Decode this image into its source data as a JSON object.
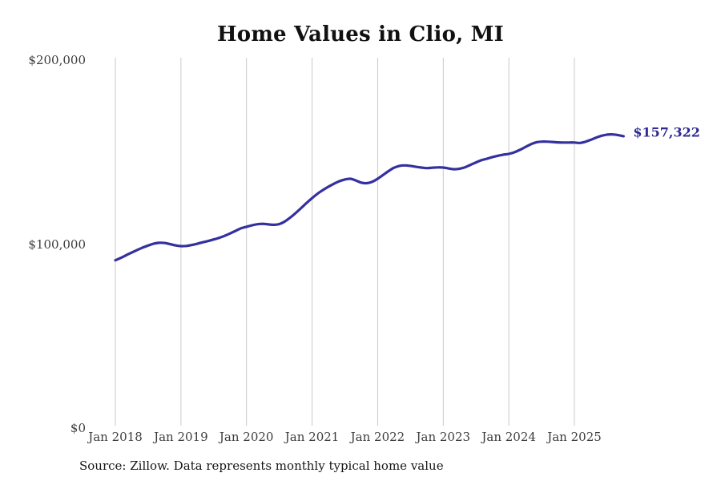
{
  "title": "Home Values in Clio, MI",
  "source_note": "Source: Zillow. Data represents monthly typical home value",
  "latest_value_label": "$157,322",
  "colors": {
    "line": "#34319f",
    "latest_label": "#2d2a92",
    "gridline": "#c9c9c9",
    "tick_text": "#3d3d3d",
    "title_text": "#111111",
    "background": "#ffffff"
  },
  "y_axis": {
    "tick_labels": [
      "$200,000",
      "$100,000",
      "$0"
    ],
    "tick_values": [
      200000,
      100000,
      0
    ]
  },
  "x_axis": {
    "tick_labels": [
      "Jan 2018",
      "Jan 2019",
      "Jan 2020",
      "Jan 2021",
      "Jan 2022",
      "Jan 2023",
      "Jan 2024",
      "Jan 2025"
    ],
    "tick_month_indices": [
      0,
      12,
      24,
      36,
      48,
      60,
      72,
      84
    ]
  },
  "chart_data": {
    "type": "line",
    "title": "Home Values in Clio, MI",
    "xlabel": "",
    "ylabel": "",
    "ylim": [
      0,
      200000
    ],
    "y_ticks": [
      0,
      100000,
      200000
    ],
    "grid": "vertical-only",
    "legend": "none",
    "series_name": "Typical home value",
    "last_value": 157322,
    "last_value_label": "$157,322",
    "x": [
      "2018-01",
      "2018-02",
      "2018-03",
      "2018-04",
      "2018-05",
      "2018-06",
      "2018-07",
      "2018-08",
      "2018-09",
      "2018-10",
      "2018-11",
      "2018-12",
      "2019-01",
      "2019-02",
      "2019-03",
      "2019-04",
      "2019-05",
      "2019-06",
      "2019-07",
      "2019-08",
      "2019-09",
      "2019-10",
      "2019-11",
      "2019-12",
      "2020-01",
      "2020-02",
      "2020-03",
      "2020-04",
      "2020-05",
      "2020-06",
      "2020-07",
      "2020-08",
      "2020-09",
      "2020-10",
      "2020-11",
      "2020-12",
      "2021-01",
      "2021-02",
      "2021-03",
      "2021-04",
      "2021-05",
      "2021-06",
      "2021-07",
      "2021-08",
      "2021-09",
      "2021-10",
      "2021-11",
      "2021-12",
      "2022-01",
      "2022-02",
      "2022-03",
      "2022-04",
      "2022-05",
      "2022-06",
      "2022-07",
      "2022-08",
      "2022-09",
      "2022-10",
      "2022-11",
      "2022-12",
      "2023-01",
      "2023-02",
      "2023-03",
      "2023-04",
      "2023-05",
      "2023-06",
      "2023-07",
      "2023-08",
      "2023-09",
      "2023-10",
      "2023-11",
      "2023-12",
      "2024-01",
      "2024-02",
      "2024-03",
      "2024-04",
      "2024-05",
      "2024-06",
      "2024-07",
      "2024-08",
      "2024-09",
      "2024-10",
      "2024-11",
      "2024-12",
      "2025-01",
      "2025-02",
      "2025-03",
      "2025-04",
      "2025-05",
      "2025-06",
      "2025-07",
      "2025-08",
      "2025-09",
      "2025-10"
    ],
    "y": [
      89900,
      91200,
      92700,
      94100,
      95500,
      96800,
      97900,
      98900,
      99400,
      99300,
      98700,
      98000,
      97600,
      97700,
      98200,
      98900,
      99700,
      100400,
      101200,
      102100,
      103200,
      104500,
      105900,
      107300,
      108100,
      108900,
      109500,
      109700,
      109400,
      109200,
      109600,
      111000,
      113100,
      115600,
      118300,
      121100,
      123700,
      126100,
      128100,
      129900,
      131500,
      132900,
      133800,
      134200,
      133300,
      132100,
      131800,
      132600,
      134200,
      136300,
      138400,
      140200,
      141200,
      141500,
      141200,
      140700,
      140300,
      140000,
      140200,
      140400,
      140300,
      139800,
      139400,
      139700,
      140500,
      141800,
      143100,
      144300,
      145100,
      146000,
      146700,
      147300,
      147700,
      148600,
      149900,
      151400,
      152900,
      154000,
      154400,
      154400,
      154200,
      154000,
      153900,
      153900,
      153900,
      153700,
      154300,
      155400,
      156600,
      157600,
      158200,
      158300,
      157900,
      157322
    ]
  }
}
